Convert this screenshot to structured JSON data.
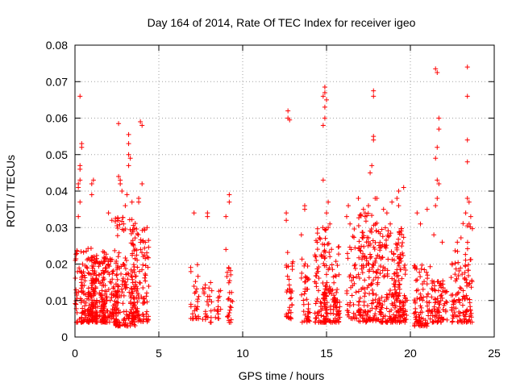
{
  "chart_data": {
    "type": "scatter",
    "title": "Day 164 of 2014, Rate Of TEC Index for receiver igeo",
    "xlabel": "GPS time / hours",
    "ylabel": "ROTI / TECUs",
    "xlim": [
      0,
      25
    ],
    "ylim": [
      0,
      0.08
    ],
    "x_ticks": [
      0,
      5,
      10,
      15,
      20,
      25
    ],
    "x_tick_labels": [
      "0",
      "5",
      "10",
      "15",
      "20",
      "25"
    ],
    "y_ticks": [
      0,
      0.01,
      0.02,
      0.03,
      0.04,
      0.05,
      0.06,
      0.07,
      0.08
    ],
    "y_tick_labels": [
      "0",
      "0.01",
      "0.02",
      "0.03",
      "0.04",
      "0.05",
      "0.06",
      "0.07",
      "0.08"
    ],
    "grid": true,
    "marker": "+",
    "marker_color": "#ff0000",
    "clusters": [
      {
        "x_range": [
          0.0,
          1.3
        ],
        "y_range": [
          0.004,
          0.025
        ],
        "count": 170
      },
      {
        "x_range": [
          0.8,
          2.0
        ],
        "y_range": [
          0.004,
          0.022
        ],
        "count": 120
      },
      {
        "x_range": [
          1.6,
          2.6
        ],
        "y_range": [
          0.004,
          0.024
        ],
        "count": 110
      },
      {
        "x_range": [
          2.4,
          3.6
        ],
        "y_range": [
          0.003,
          0.033
        ],
        "count": 150
      },
      {
        "x_range": [
          3.3,
          4.4
        ],
        "y_range": [
          0.004,
          0.03
        ],
        "count": 120
      },
      {
        "x_range": [
          6.9,
          7.4
        ],
        "y_range": [
          0.005,
          0.022
        ],
        "count": 30
      },
      {
        "x_range": [
          7.6,
          8.2
        ],
        "y_range": [
          0.004,
          0.016
        ],
        "count": 25
      },
      {
        "x_range": [
          8.3,
          8.7
        ],
        "y_range": [
          0.005,
          0.014
        ],
        "count": 14
      },
      {
        "x_range": [
          9.0,
          9.4
        ],
        "y_range": [
          0.004,
          0.02
        ],
        "count": 25
      },
      {
        "x_range": [
          12.6,
          13.0
        ],
        "y_range": [
          0.005,
          0.024
        ],
        "count": 35
      },
      {
        "x_range": [
          13.5,
          14.0
        ],
        "y_range": [
          0.004,
          0.022
        ],
        "count": 40
      },
      {
        "x_range": [
          14.3,
          15.0
        ],
        "y_range": [
          0.004,
          0.03
        ],
        "count": 90
      },
      {
        "x_range": [
          14.8,
          15.8
        ],
        "y_range": [
          0.004,
          0.026
        ],
        "count": 110
      },
      {
        "x_range": [
          16.2,
          16.8
        ],
        "y_range": [
          0.005,
          0.03
        ],
        "count": 40
      },
      {
        "x_range": [
          16.9,
          18.0
        ],
        "y_range": [
          0.004,
          0.034
        ],
        "count": 150
      },
      {
        "x_range": [
          18.0,
          19.6
        ],
        "y_range": [
          0.004,
          0.03
        ],
        "count": 170
      },
      {
        "x_range": [
          19.0,
          19.8
        ],
        "y_range": [
          0.004,
          0.022
        ],
        "count": 70
      },
      {
        "x_range": [
          20.2,
          21.2
        ],
        "y_range": [
          0.003,
          0.02
        ],
        "count": 90
      },
      {
        "x_range": [
          21.2,
          22.2
        ],
        "y_range": [
          0.004,
          0.016
        ],
        "count": 80
      },
      {
        "x_range": [
          22.4,
          23.0
        ],
        "y_range": [
          0.004,
          0.026
        ],
        "count": 50
      },
      {
        "x_range": [
          23.0,
          23.7
        ],
        "y_range": [
          0.004,
          0.033
        ],
        "count": 70
      }
    ],
    "points": [
      [
        0.3,
        0.066
      ],
      [
        0.4,
        0.053
      ],
      [
        0.4,
        0.052
      ],
      [
        0.3,
        0.047
      ],
      [
        0.3,
        0.046
      ],
      [
        0.2,
        0.041
      ],
      [
        0.3,
        0.043
      ],
      [
        0.2,
        0.042
      ],
      [
        0.3,
        0.037
      ],
      [
        0.2,
        0.033
      ],
      [
        1.1,
        0.043
      ],
      [
        1.0,
        0.042
      ],
      [
        1.0,
        0.039
      ],
      [
        2.6,
        0.0585
      ],
      [
        2.6,
        0.044
      ],
      [
        2.7,
        0.043
      ],
      [
        2.7,
        0.042
      ],
      [
        2.8,
        0.04
      ],
      [
        2.9,
        0.031
      ],
      [
        2.2,
        0.032
      ],
      [
        2.0,
        0.034
      ],
      [
        3.2,
        0.0555
      ],
      [
        3.2,
        0.053
      ],
      [
        3.2,
        0.05
      ],
      [
        3.3,
        0.049
      ],
      [
        3.2,
        0.047
      ],
      [
        3.1,
        0.039
      ],
      [
        3.0,
        0.036
      ],
      [
        3.4,
        0.037
      ],
      [
        3.9,
        0.059
      ],
      [
        4.0,
        0.058
      ],
      [
        4.0,
        0.042
      ],
      [
        3.8,
        0.038
      ],
      [
        3.8,
        0.037
      ],
      [
        4.3,
        0.03
      ],
      [
        7.1,
        0.034
      ],
      [
        7.9,
        0.034
      ],
      [
        7.9,
        0.033
      ],
      [
        9.2,
        0.039
      ],
      [
        9.2,
        0.037
      ],
      [
        9.0,
        0.033
      ],
      [
        9.0,
        0.024
      ],
      [
        12.7,
        0.062
      ],
      [
        12.7,
        0.06
      ],
      [
        12.8,
        0.0595
      ],
      [
        12.6,
        0.034
      ],
      [
        12.6,
        0.032
      ],
      [
        13.7,
        0.036
      ],
      [
        13.7,
        0.035
      ],
      [
        13.5,
        0.028
      ],
      [
        14.9,
        0.0685
      ],
      [
        14.9,
        0.067
      ],
      [
        14.8,
        0.066
      ],
      [
        15.0,
        0.065
      ],
      [
        14.9,
        0.063
      ],
      [
        14.9,
        0.06
      ],
      [
        14.8,
        0.058
      ],
      [
        14.8,
        0.043
      ],
      [
        15.1,
        0.037
      ],
      [
        15.0,
        0.034
      ],
      [
        15.2,
        0.031
      ],
      [
        15.1,
        0.03
      ],
      [
        16.3,
        0.036
      ],
      [
        16.2,
        0.033
      ],
      [
        16.4,
        0.031
      ],
      [
        16.9,
        0.038
      ],
      [
        17.2,
        0.035
      ],
      [
        17.3,
        0.034
      ],
      [
        17.8,
        0.0675
      ],
      [
        17.8,
        0.066
      ],
      [
        17.8,
        0.055
      ],
      [
        17.8,
        0.054
      ],
      [
        17.7,
        0.047
      ],
      [
        17.6,
        0.045
      ],
      [
        17.9,
        0.038
      ],
      [
        18.0,
        0.038
      ],
      [
        17.5,
        0.036
      ],
      [
        17.3,
        0.033
      ],
      [
        18.4,
        0.035
      ],
      [
        18.6,
        0.034
      ],
      [
        18.9,
        0.037
      ],
      [
        19.3,
        0.04
      ],
      [
        19.2,
        0.038
      ],
      [
        19.6,
        0.041
      ],
      [
        19.3,
        0.036
      ],
      [
        18.8,
        0.031
      ],
      [
        20.4,
        0.034
      ],
      [
        20.6,
        0.031
      ],
      [
        21.0,
        0.035
      ],
      [
        21.5,
        0.0735
      ],
      [
        21.6,
        0.0725
      ],
      [
        21.7,
        0.06
      ],
      [
        21.7,
        0.057
      ],
      [
        21.6,
        0.052
      ],
      [
        21.5,
        0.049
      ],
      [
        21.6,
        0.043
      ],
      [
        21.7,
        0.042
      ],
      [
        21.6,
        0.038
      ],
      [
        21.5,
        0.036
      ],
      [
        21.4,
        0.028
      ],
      [
        21.9,
        0.026
      ],
      [
        23.4,
        0.074
      ],
      [
        23.4,
        0.066
      ],
      [
        23.4,
        0.054
      ],
      [
        23.4,
        0.048
      ],
      [
        23.4,
        0.038
      ],
      [
        23.5,
        0.037
      ],
      [
        23.3,
        0.034
      ],
      [
        23.6,
        0.033
      ],
      [
        23.5,
        0.031
      ],
      [
        22.8,
        0.026
      ],
      [
        23.6,
        0.006
      ]
    ]
  }
}
